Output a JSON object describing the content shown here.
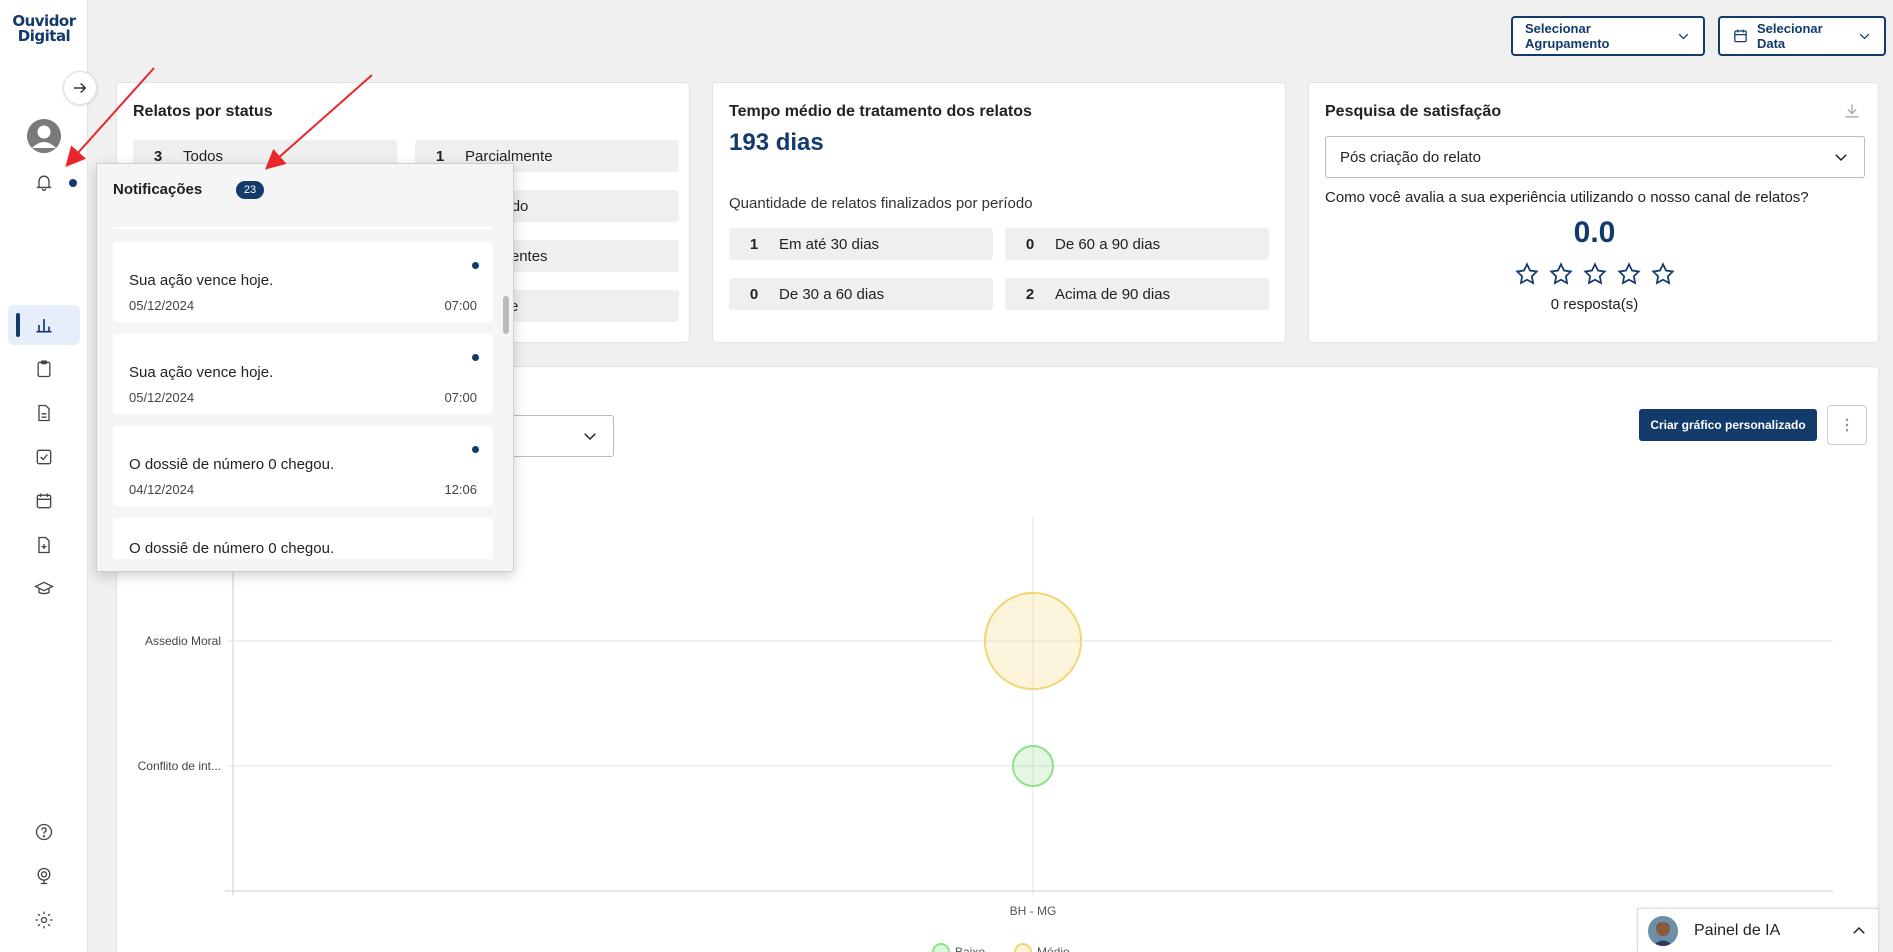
{
  "logo": {
    "line1": "Ouvidor",
    "line2": "Digital"
  },
  "header": {
    "grouping_label": "Selecionar Agrupamento",
    "date_label": "Selecionar Data"
  },
  "status_card": {
    "title": "Relatos por status",
    "items": [
      {
        "count": "3",
        "label": "Todos"
      },
      {
        "count": "1",
        "label": "Parcialmente"
      },
      {
        "count": "",
        "label": "ualificado"
      },
      {
        "count": "",
        "label": "insuficientes"
      },
      {
        "count": "",
        "label": "cedente"
      }
    ]
  },
  "time_card": {
    "title": "Tempo médio de tratamento dos relatos",
    "value": "193 dias",
    "subtitle": "Quantidade de relatos finalizados por período",
    "items": [
      {
        "count": "1",
        "label": "Em até 30 dias"
      },
      {
        "count": "0",
        "label": "De 60 a 90 dias"
      },
      {
        "count": "0",
        "label": "De 30 a 60 dias"
      },
      {
        "count": "2",
        "label": "Acima de 90 dias"
      }
    ]
  },
  "survey_card": {
    "title": "Pesquisa de satisfação",
    "select_value": "Pós criação do relato",
    "question": "Como você avalia a sua experiência utilizando o nosso canal de relatos?",
    "score": "0.0",
    "responses": "0 resposta(s)",
    "stars": 0
  },
  "chart_section": {
    "create_button": "Criar gráfico personalizado"
  },
  "chart_data": {
    "type": "scatter",
    "categories_x": [
      "BH - MG"
    ],
    "categories_y": [
      "Assedio Moral",
      "Conflito de int..."
    ],
    "points": [
      {
        "x": "BH - MG",
        "y": "Assedio Moral",
        "size": 2,
        "color": "#f2d675"
      },
      {
        "x": "BH - MG",
        "y": "Conflito de int...",
        "size": 1,
        "color": "#8fe08a"
      }
    ],
    "legend": [
      "Baixo",
      "Médio"
    ],
    "grid": true
  },
  "notifications": {
    "title": "Notificações",
    "count": "23",
    "items": [
      {
        "message": "Sua ação vence hoje.",
        "date": "05/12/2024",
        "time": "07:00",
        "unread": true
      },
      {
        "message": "Sua ação vence hoje.",
        "date": "05/12/2024",
        "time": "07:00",
        "unread": true
      },
      {
        "message": "O dossiê de número 0 chegou.",
        "date": "04/12/2024",
        "time": "12:06",
        "unread": true
      },
      {
        "message": "O dossiê de número 0 chegou.",
        "date": "",
        "time": "",
        "unread": false
      }
    ]
  },
  "ia_panel": {
    "label": "Painel de IA"
  },
  "colors": {
    "primary": "#123a6b",
    "bubble_yellow": "#f2d675",
    "bubble_green": "#8fe08a"
  }
}
